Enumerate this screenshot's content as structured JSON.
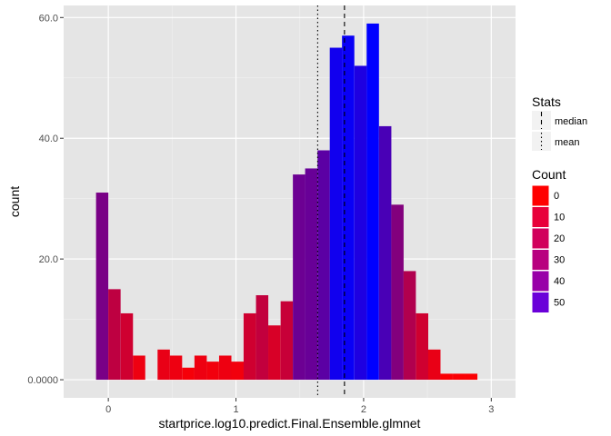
{
  "chart_data": {
    "type": "bar",
    "xlabel": "startprice.log10.predict.Final.Ensemble.glmnet",
    "ylabel": "count",
    "xlim": [
      -0.35,
      3.19
    ],
    "ylim": [
      -3,
      62
    ],
    "x_ticks": [
      0,
      1,
      2,
      3
    ],
    "x_tick_labels": [
      "0",
      "1",
      "2",
      "3"
    ],
    "y_ticks": [
      0,
      20,
      40,
      60
    ],
    "y_tick_labels": [
      "0.0000",
      "20.0",
      "40.0",
      "60.0"
    ],
    "bin_width": 0.0964,
    "x": [
      -0.048,
      0.048,
      0.145,
      0.241,
      0.337,
      0.434,
      0.53,
      0.627,
      0.723,
      0.819,
      0.916,
      1.012,
      1.108,
      1.205,
      1.301,
      1.398,
      1.494,
      1.59,
      1.687,
      1.783,
      1.879,
      1.976,
      2.072,
      2.169,
      2.265,
      2.361,
      2.458,
      2.554,
      2.65,
      2.747,
      2.843
    ],
    "values": [
      31,
      15,
      11,
      4,
      0,
      5,
      4,
      2,
      4,
      3,
      4,
      3,
      11,
      14,
      9,
      13,
      34,
      35,
      38,
      55,
      57,
      52,
      59,
      42,
      29,
      18,
      11,
      5,
      1,
      1,
      1
    ],
    "grid": true,
    "background": "#e5e5e5",
    "vlines": [
      {
        "stat": "mean",
        "x": 1.64,
        "linetype": "dotted"
      },
      {
        "stat": "median",
        "x": 1.85,
        "linetype": "dashed"
      }
    ],
    "fill_scale": {
      "low": "#ff0000",
      "high": "#0000ff",
      "min": 0,
      "max": 59
    },
    "legend": {
      "position": "right",
      "stats_title": "Stats",
      "stats_items": [
        {
          "label": "median",
          "linetype": "dashed"
        },
        {
          "label": "mean",
          "linetype": "dotted"
        }
      ],
      "count_title": "Count",
      "count_items": [
        {
          "label": "0",
          "value": 0,
          "color": "#ff0000"
        },
        {
          "label": "10",
          "value": 10,
          "color": "#e8003a"
        },
        {
          "label": "20",
          "value": 20,
          "color": "#d1005c"
        },
        {
          "label": "30",
          "value": 30,
          "color": "#b8007f"
        },
        {
          "label": "40",
          "value": 40,
          "color": "#9800a8"
        },
        {
          "label": "50",
          "value": 50,
          "color": "#6a00d9"
        }
      ]
    }
  }
}
